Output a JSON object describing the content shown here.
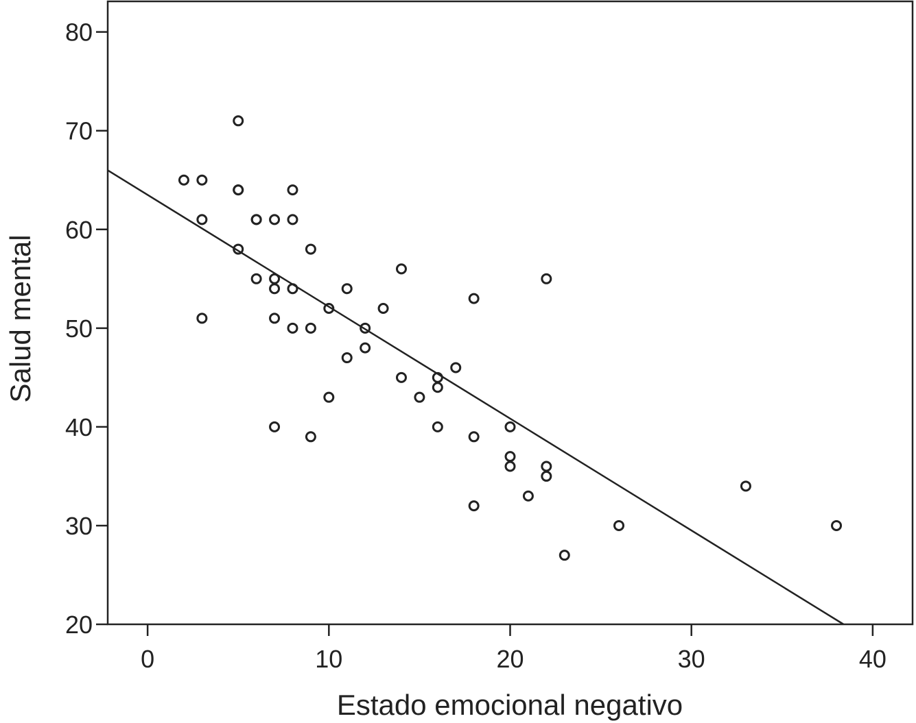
{
  "chart_data": {
    "type": "scatter",
    "title": "",
    "xlabel": "Estado emocional negativo",
    "ylabel": "Salud mental",
    "xlim": [
      -2.2,
      42.2
    ],
    "ylim": [
      20,
      83.1
    ],
    "xticks": [
      0,
      10,
      20,
      30,
      40
    ],
    "yticks": [
      20,
      30,
      40,
      50,
      60,
      70,
      80
    ],
    "grid": false,
    "points": [
      [
        2,
        65
      ],
      [
        3,
        65
      ],
      [
        3,
        61
      ],
      [
        3,
        51
      ],
      [
        5,
        71
      ],
      [
        5,
        64
      ],
      [
        5,
        64
      ],
      [
        5,
        58
      ],
      [
        6,
        61
      ],
      [
        6,
        61
      ],
      [
        6,
        55
      ],
      [
        7,
        61
      ],
      [
        7,
        55
      ],
      [
        7,
        54
      ],
      [
        7,
        51
      ],
      [
        7,
        40
      ],
      [
        8,
        64
      ],
      [
        8,
        61
      ],
      [
        8,
        54
      ],
      [
        8,
        50
      ],
      [
        9,
        58
      ],
      [
        9,
        50
      ],
      [
        9,
        39
      ],
      [
        10,
        52
      ],
      [
        10,
        43
      ],
      [
        11,
        54
      ],
      [
        11,
        47
      ],
      [
        12,
        50
      ],
      [
        12,
        48
      ],
      [
        13,
        52
      ],
      [
        14,
        56
      ],
      [
        14,
        45
      ],
      [
        15,
        43
      ],
      [
        16,
        45
      ],
      [
        16,
        44
      ],
      [
        16,
        40
      ],
      [
        17,
        46
      ],
      [
        18,
        53
      ],
      [
        18,
        39
      ],
      [
        18,
        32
      ],
      [
        20,
        40
      ],
      [
        20,
        37
      ],
      [
        20,
        36
      ],
      [
        21,
        33
      ],
      [
        22,
        55
      ],
      [
        22,
        36
      ],
      [
        22,
        35
      ],
      [
        23,
        27
      ],
      [
        26,
        30
      ],
      [
        33,
        34
      ],
      [
        38,
        30
      ]
    ],
    "fit_line": {
      "intercept": 63.5,
      "slope": -1.133
    }
  }
}
